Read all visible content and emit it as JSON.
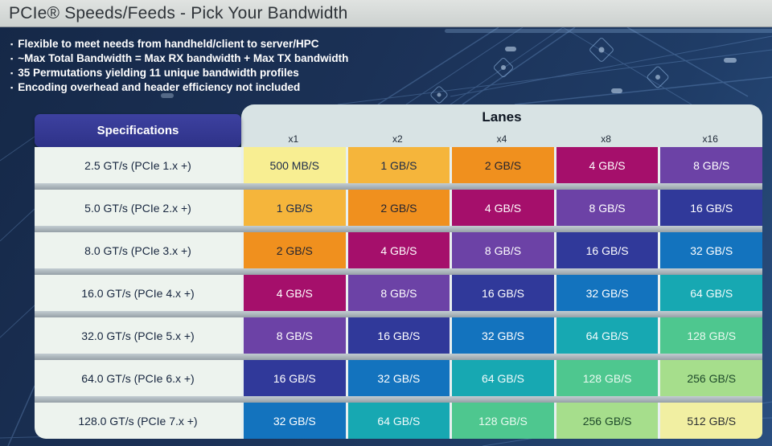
{
  "title": "PCIe® Speeds/Feeds - Pick Your Bandwidth",
  "bullet_marker": "▪",
  "bullets": [
    "Flexible to meet needs from handheld/client to server/HPC",
    "~Max Total Bandwidth = Max RX bandwidth + Max TX bandwidth",
    "35 Permutations yielding 11 unique bandwidth profiles",
    "Encoding overhead and header efficiency not included"
  ],
  "table": {
    "spec_header": "Specifications",
    "lanes_header": "Lanes",
    "lane_columns": [
      "x1",
      "x2",
      "x4",
      "x8",
      "x16"
    ],
    "rows": [
      {
        "spec": "2.5 GT/s (PCIe 1.x +)",
        "values": [
          "500 MB/S",
          "1 GB/S",
          "2 GB/S",
          "4 GB/S",
          "8 GB/S"
        ]
      },
      {
        "spec": "5.0 GT/s (PCIe 2.x +)",
        "values": [
          "1 GB/S",
          "2 GB/S",
          "4 GB/S",
          "8 GB/S",
          "16 GB/S"
        ]
      },
      {
        "spec": "8.0 GT/s (PCIe 3.x +)",
        "values": [
          "2 GB/S",
          "4 GB/S",
          "8 GB/S",
          "16 GB/S",
          "32 GB/S"
        ]
      },
      {
        "spec": "16.0 GT/s (PCIe 4.x +)",
        "values": [
          "4 GB/S",
          "8 GB/S",
          "16 GB/S",
          "32 GB/S",
          "64 GB/S"
        ]
      },
      {
        "spec": "32.0 GT/s (PCIe 5.x +)",
        "values": [
          "8 GB/S",
          "16 GB/S",
          "32 GB/S",
          "64 GB/S",
          "128 GB/S"
        ]
      },
      {
        "spec": "64.0 GT/s (PCIe 6.x +)",
        "values": [
          "16 GB/S",
          "32 GB/S",
          "64 GB/S",
          "128 GB/S",
          "256 GB/S"
        ]
      },
      {
        "spec": "128.0 GT/s (PCIe 7.x +)",
        "values": [
          "32 GB/S",
          "64 GB/S",
          "128 GB/S",
          "256 GB/S",
          "512 GB/S"
        ]
      }
    ]
  },
  "colors": {
    "500 MB/S": {
      "bg": "#f8ee92",
      "fg": "#1b2a4a"
    },
    "1 GB/S": {
      "bg": "#f5b53b",
      "fg": "#1b2a4a"
    },
    "2 GB/S": {
      "bg": "#f0901e",
      "fg": "#232430"
    },
    "4 GB/S": {
      "bg": "#a50f6b",
      "fg": "#ffffff"
    },
    "8 GB/S": {
      "bg": "#6c42a6",
      "fg": "#ffffff"
    },
    "16 GB/S": {
      "bg": "#30399a",
      "fg": "#ffffff"
    },
    "32 GB/S": {
      "bg": "#1373be",
      "fg": "#ffffff"
    },
    "64 GB/S": {
      "bg": "#17a8b2",
      "fg": "#f2fbfb"
    },
    "128 GB/S": {
      "bg": "#4ec78f",
      "fg": "#eafaf0"
    },
    "256 GB/S": {
      "bg": "#a6de8c",
      "fg": "#1e4a2b"
    },
    "512 GB/S": {
      "bg": "#f1efa2",
      "fg": "#2c2f33"
    },
    "accent_indigo": "#2e3288",
    "panel_light": "#d8e3e4",
    "background_navy": "#1b3156",
    "titlebar_gray": "#ccd1cf"
  }
}
